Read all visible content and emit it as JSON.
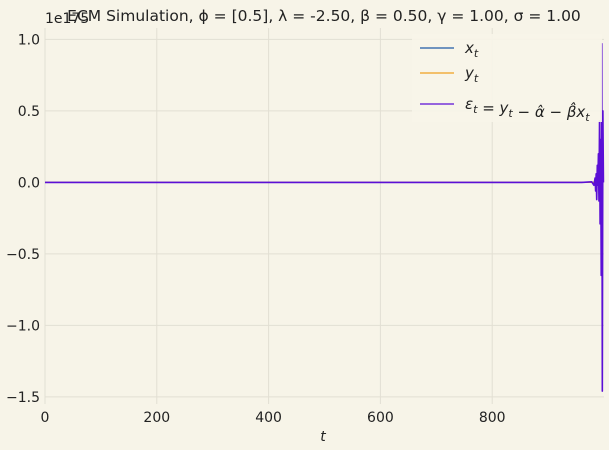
{
  "chart_data": {
    "type": "line",
    "title": "ECM Simulation, ϕ = [0.5], λ = -2.50, β = 0.50, γ = 1.00, σ = 1.00",
    "xlabel": "t",
    "ylabel": "",
    "y_offset_label": "1e175",
    "xlim": [
      0,
      1000
    ],
    "ylim": [
      -1.55,
      1.08
    ],
    "x_ticks": [
      0,
      200,
      400,
      600,
      800
    ],
    "x_tick_labels": [
      "0",
      "200",
      "400",
      "600",
      "800"
    ],
    "y_ticks": [
      -1.5,
      -1.0,
      -0.5,
      0.0,
      0.5,
      1.0
    ],
    "y_tick_labels": [
      "−1.5",
      "−1.0",
      "−0.5",
      "0.0",
      "0.5",
      "1.0"
    ],
    "grid": true,
    "legend_position": "top-right",
    "series": [
      {
        "name": "x_t",
        "color": "#1f5aa6",
        "points": [
          [
            0,
            0
          ],
          [
            970,
            0
          ],
          [
            985,
            0.0015
          ],
          [
            992,
            0.004
          ],
          [
            996,
            0.008
          ],
          [
            998,
            0.012
          ],
          [
            999,
            0.01
          ]
        ]
      },
      {
        "name": "y_t",
        "color": "#f0a020",
        "points": [
          [
            0,
            0
          ],
          [
            970,
            0
          ],
          [
            985,
            0.0008
          ],
          [
            992,
            0.002
          ],
          [
            996,
            0.004
          ],
          [
            998,
            0.006
          ],
          [
            999,
            0.005
          ]
        ]
      },
      {
        "name": "ε_t = y_t − α̂ − β̂x_t",
        "color": "#5b0fd6",
        "points": [
          [
            0,
            0
          ],
          [
            960,
            0
          ],
          [
            978,
            0.004
          ],
          [
            982,
            -0.02
          ],
          [
            984,
            0.03
          ],
          [
            985,
            -0.06
          ],
          [
            986,
            0.06
          ],
          [
            987,
            -0.12
          ],
          [
            988,
            0.12
          ],
          [
            989,
            -0.02
          ],
          [
            990,
            0.2
          ],
          [
            991,
            -0.13
          ],
          [
            992,
            0.43
          ],
          [
            993,
            -0.29
          ],
          [
            994,
            0.3
          ],
          [
            995,
            -0.65
          ],
          [
            996,
            0.97
          ],
          [
            997,
            -1.46
          ],
          [
            998,
            0.5
          ],
          [
            999,
            0.0
          ]
        ]
      }
    ]
  }
}
